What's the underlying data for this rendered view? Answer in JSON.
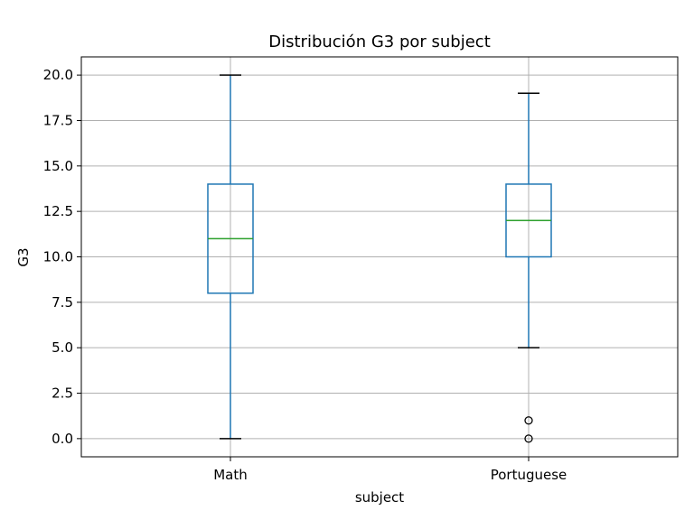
{
  "chart_data": {
    "type": "boxplot",
    "title": "Distribución G3 por subject",
    "xlabel": "subject",
    "ylabel": "G3",
    "ylim": [
      -1,
      21
    ],
    "yticks": [
      "0.0",
      "2.5",
      "5.0",
      "7.5",
      "10.0",
      "12.5",
      "15.0",
      "17.5",
      "20.0"
    ],
    "grid": true,
    "categories": [
      "Math",
      "Portuguese"
    ],
    "boxes": [
      {
        "category": "Math",
        "whisker_low": 0,
        "q1": 8,
        "median": 11,
        "q3": 14,
        "whisker_high": 20,
        "outliers": []
      },
      {
        "category": "Portuguese",
        "whisker_low": 5,
        "q1": 10,
        "median": 12,
        "q3": 14,
        "whisker_high": 19,
        "outliers": [
          0,
          1
        ]
      }
    ]
  },
  "colors": {
    "box": "#1f77b4",
    "median": "#2ca02c",
    "whisker": "#1f77b4",
    "cap": "#000000",
    "grid": "#b0b0b0",
    "outlier": "#000000"
  }
}
